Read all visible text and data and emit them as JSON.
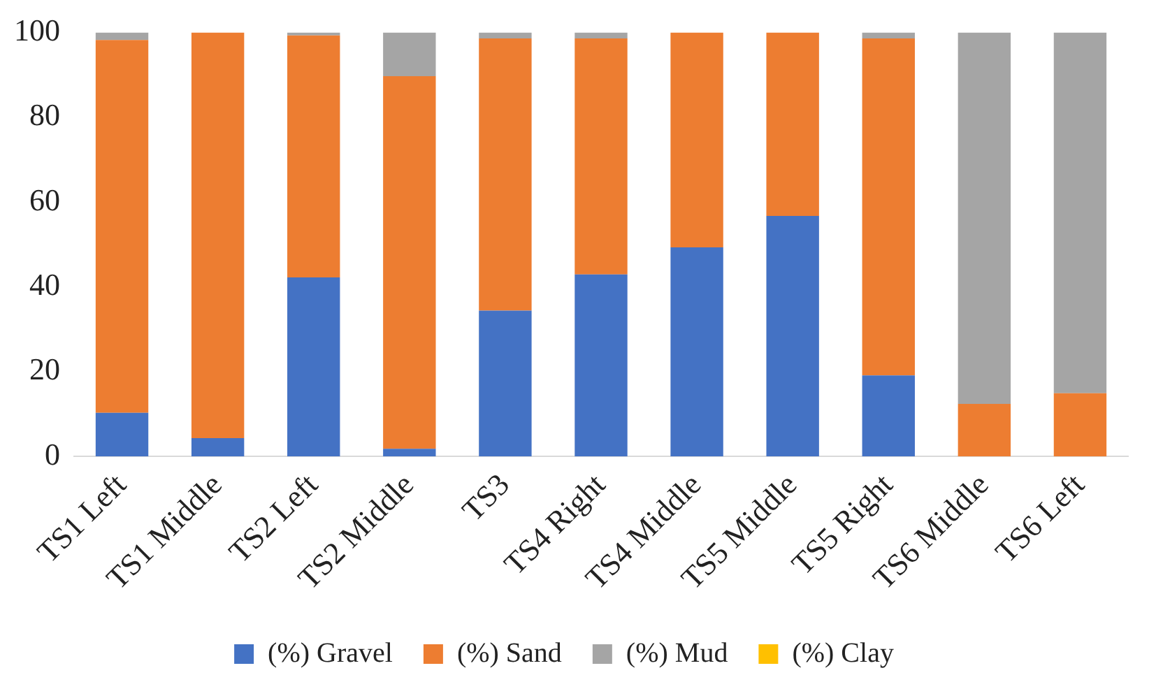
{
  "chart_data": {
    "type": "bar",
    "stacked": true,
    "categories": [
      "TS1 Left",
      "TS1 Middle",
      "TS2 Left",
      "TS2 Middle",
      "TS3",
      "TS4 Right",
      "TS4 Middle",
      "TS5 Middle",
      "TS5 Right",
      "TS6 Middle",
      "TS6 Left"
    ],
    "series": [
      {
        "name": "(%) Gravel",
        "color": "#4472c4",
        "values": [
          10.3,
          4.3,
          42.2,
          1.8,
          34.4,
          42.9,
          49.3,
          56.7,
          19.1,
          0,
          0
        ]
      },
      {
        "name": "(%) Sand",
        "color": "#ed7d31",
        "values": [
          87.9,
          95.7,
          57.1,
          87.9,
          64.2,
          55.7,
          50.7,
          43.3,
          79.5,
          12.4,
          14.9
        ]
      },
      {
        "name": "(%) Mud",
        "color": "#a5a5a5",
        "values": [
          1.8,
          0,
          0.7,
          10.3,
          1.4,
          1.4,
          0,
          0,
          1.4,
          87.6,
          85.1
        ]
      },
      {
        "name": "(%) Clay",
        "color": "#ffc000",
        "values": [
          0,
          0,
          0,
          0,
          0,
          0,
          0,
          0,
          0,
          0,
          0
        ]
      }
    ],
    "ylim": [
      0,
      100
    ],
    "yticks": [
      0,
      20,
      40,
      60,
      80,
      100
    ],
    "grid": false,
    "legend": "bottom"
  }
}
